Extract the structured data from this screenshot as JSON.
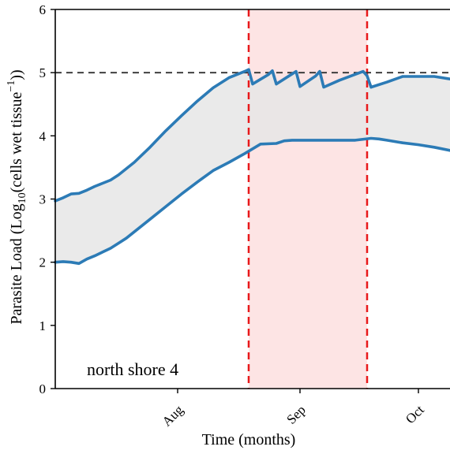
{
  "chart_data": {
    "type": "line",
    "ylabel_main": "Parasite Load (Log",
    "ylabel_sub": "10",
    "ylabel_rest": "(cells wet tissue",
    "ylabel_sup": "−1",
    "ylabel_close": "))",
    "xlabel": "Time (months)",
    "annotation": "north shore 4",
    "ylim": [
      0,
      6
    ],
    "xlim": [
      0,
      100
    ],
    "yticks": [
      "0",
      "1",
      "2",
      "3",
      "4",
      "5",
      "6"
    ],
    "xticks": [
      {
        "label": "Aug",
        "x": 31
      },
      {
        "label": "Sep",
        "x": 62
      },
      {
        "label": "Oct",
        "x": 92
      }
    ],
    "threshold": 5,
    "shaded_region": [
      49,
      79
    ],
    "series": [
      {
        "key": "upper",
        "color": "#2c7bb6",
        "x": [
          0,
          2,
          4,
          6,
          8,
          10,
          12,
          14,
          16,
          18,
          20,
          24,
          28,
          32,
          36,
          40,
          44,
          48,
          49,
          50,
          54,
          55,
          56,
          60,
          61,
          62,
          66,
          67,
          68,
          72,
          78,
          79,
          80,
          84,
          88,
          92,
          96,
          100
        ],
        "values": [
          2.97,
          3.02,
          3.08,
          3.09,
          3.14,
          3.2,
          3.25,
          3.3,
          3.38,
          3.48,
          3.58,
          3.82,
          4.08,
          4.32,
          4.55,
          4.76,
          4.92,
          5.02,
          5.05,
          4.82,
          4.97,
          5.03,
          4.82,
          4.98,
          5.02,
          4.78,
          4.95,
          5.02,
          4.77,
          4.88,
          5.02,
          4.95,
          4.77,
          4.85,
          4.94,
          4.94,
          4.94,
          4.9
        ]
      },
      {
        "key": "lower",
        "color": "#2c7bb6",
        "x": [
          0,
          2,
          4,
          6,
          8,
          10,
          12,
          14,
          16,
          18,
          20,
          24,
          28,
          32,
          36,
          40,
          44,
          48,
          52,
          56,
          58,
          60,
          62,
          64,
          68,
          72,
          76,
          80,
          82,
          84,
          88,
          92,
          96,
          100
        ],
        "values": [
          2.0,
          2.01,
          2.0,
          1.98,
          2.05,
          2.1,
          2.16,
          2.22,
          2.3,
          2.38,
          2.48,
          2.68,
          2.88,
          3.08,
          3.27,
          3.45,
          3.58,
          3.72,
          3.87,
          3.88,
          3.92,
          3.93,
          3.93,
          3.93,
          3.93,
          3.93,
          3.93,
          3.96,
          3.95,
          3.93,
          3.89,
          3.86,
          3.82,
          3.77
        ]
      }
    ],
    "colors": {
      "line": "#2c7bb6",
      "band_fill": "#e6e6e6",
      "shade_fill": "#fde4e4",
      "vline": "#e8191b",
      "threshold": "#333333"
    }
  }
}
